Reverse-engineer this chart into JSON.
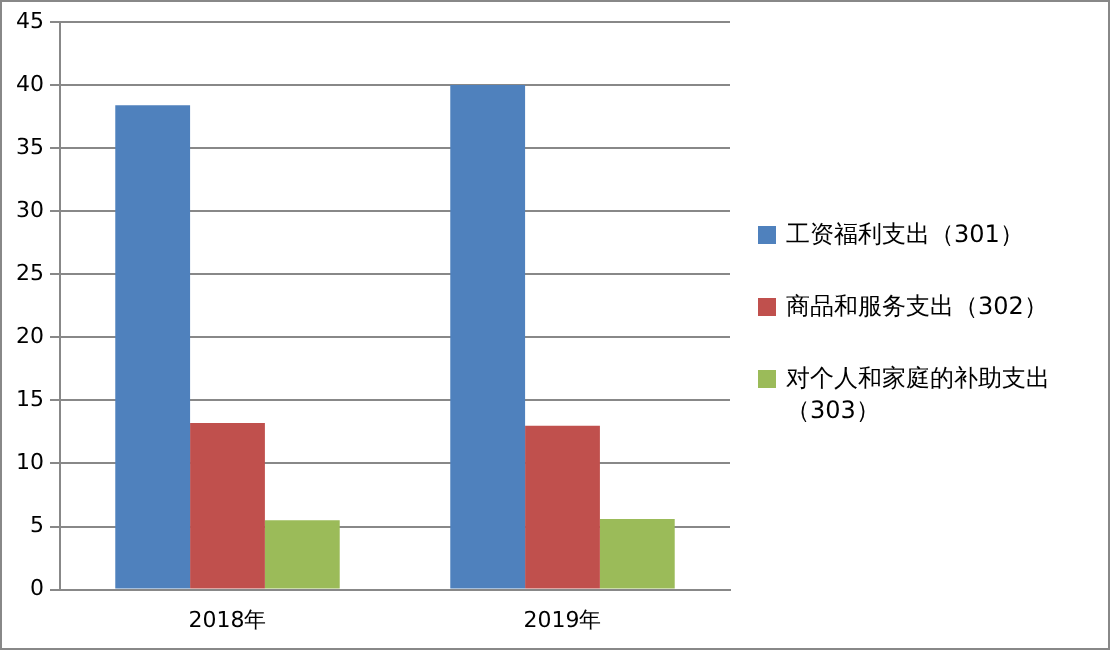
{
  "chart_data": {
    "type": "bar",
    "categories": [
      "2018年",
      "2019年"
    ],
    "series": [
      {
        "name": "工资福利支出（301）",
        "color": "#4f81bd",
        "values": [
          38.4,
          40.0
        ]
      },
      {
        "name": "商品和服务支出（302）",
        "color": "#c0504d",
        "values": [
          13.2,
          13.0
        ]
      },
      {
        "name": "对个人和家庭的补助支出（303）",
        "color": "#9bbb59",
        "values": [
          5.5,
          5.6
        ]
      }
    ],
    "ylim": [
      0,
      45
    ],
    "yticks": [
      0,
      5,
      10,
      15,
      20,
      25,
      30,
      35,
      40,
      45
    ],
    "grid": "y",
    "legend": "right"
  }
}
